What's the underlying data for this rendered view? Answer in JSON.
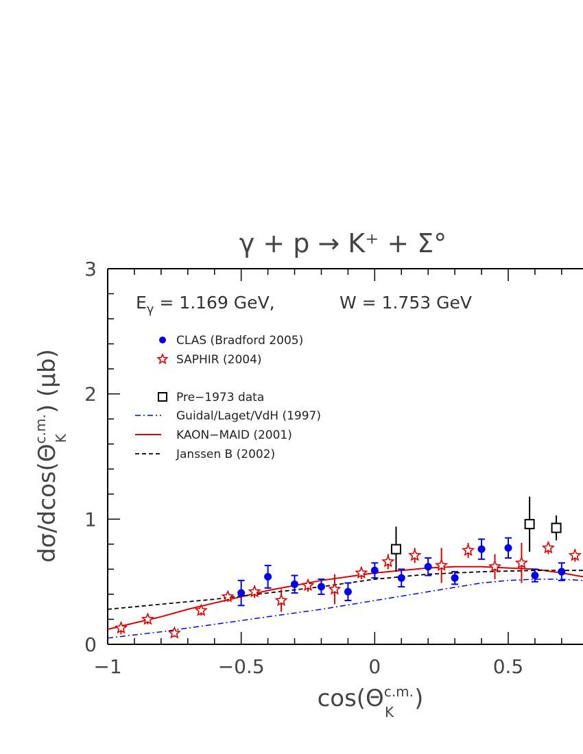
{
  "chart_data": {
    "type": "scatter",
    "title": "γ + p → K⁺ + Σ°",
    "annotation": "E_γ = 1.169 GeV,    W = 1.753 GeV",
    "annotation_parts": {
      "e_symbol": "E",
      "e_sub": "γ",
      "e_value": " = 1.169 GeV,",
      "w_text": "W = 1.753 GeV"
    },
    "xlabel": "cos(Θ_K^c.m.)",
    "xlabel_parts": {
      "base": "cos(Θ",
      "sup": "c.m.",
      "sub": "K",
      "close": ")"
    },
    "ylabel": "dσ/dcos(Θ_K^c.m.) (μb)",
    "ylabel_parts": {
      "base": "dσ/dcos(Θ",
      "sup": "c.m.",
      "sub": "K",
      "close": ") (μb)"
    },
    "xlim": [
      -1,
      0.78
    ],
    "ylim": [
      0,
      3
    ],
    "xticks": [
      -1,
      -0.5,
      0,
      0.5
    ],
    "xtick_labels": [
      "−1",
      "−0.5",
      "0",
      "0.5"
    ],
    "yticks": [
      0,
      1,
      2,
      3
    ],
    "ytick_labels": [
      "0",
      "1",
      "2",
      "3"
    ],
    "colors": {
      "clas": "#0000ee",
      "saphir": "#e00000",
      "pre1973": "#000000",
      "guidal": "#0000ee",
      "kaonmaid": "#e00000",
      "janssen": "#000000",
      "axis": "#000000"
    },
    "legend_position": "upper-left",
    "series": [
      {
        "name": "CLAS (Bradford 2005)",
        "kind": "points",
        "marker": "filled-circle",
        "points": [
          {
            "x": -0.5,
            "y": 0.41,
            "err": 0.1
          },
          {
            "x": -0.4,
            "y": 0.54,
            "err": 0.09
          },
          {
            "x": -0.3,
            "y": 0.48,
            "err": 0.07
          },
          {
            "x": -0.2,
            "y": 0.46,
            "err": 0.06
          },
          {
            "x": -0.1,
            "y": 0.42,
            "err": 0.07
          },
          {
            "x": 0.0,
            "y": 0.59,
            "err": 0.06
          },
          {
            "x": 0.1,
            "y": 0.53,
            "err": 0.07
          },
          {
            "x": 0.2,
            "y": 0.62,
            "err": 0.07
          },
          {
            "x": 0.3,
            "y": 0.53,
            "err": 0.05
          },
          {
            "x": 0.4,
            "y": 0.76,
            "err": 0.08
          },
          {
            "x": 0.5,
            "y": 0.77,
            "err": 0.08
          },
          {
            "x": 0.6,
            "y": 0.55,
            "err": 0.05
          },
          {
            "x": 0.7,
            "y": 0.58,
            "err": 0.07
          }
        ]
      },
      {
        "name": "SAPHIR (2004)",
        "kind": "points",
        "marker": "open-star",
        "points": [
          {
            "x": -0.95,
            "y": 0.13,
            "err": 0.05
          },
          {
            "x": -0.85,
            "y": 0.2,
            "err": 0.04
          },
          {
            "x": -0.75,
            "y": 0.09,
            "err": 0.03
          },
          {
            "x": -0.65,
            "y": 0.27,
            "err": 0.04
          },
          {
            "x": -0.55,
            "y": 0.38,
            "err": 0.04
          },
          {
            "x": -0.45,
            "y": 0.42,
            "err": 0.05
          },
          {
            "x": -0.35,
            "y": 0.35,
            "err": 0.09
          },
          {
            "x": -0.25,
            "y": 0.47,
            "err": 0.05
          },
          {
            "x": -0.15,
            "y": 0.44,
            "err": 0.12
          },
          {
            "x": -0.05,
            "y": 0.57,
            "err": 0.05
          },
          {
            "x": 0.05,
            "y": 0.66,
            "err": 0.06
          },
          {
            "x": 0.15,
            "y": 0.71,
            "err": 0.06
          },
          {
            "x": 0.25,
            "y": 0.63,
            "err": 0.14
          },
          {
            "x": 0.35,
            "y": 0.75,
            "err": 0.06
          },
          {
            "x": 0.45,
            "y": 0.62,
            "err": 0.1
          },
          {
            "x": 0.55,
            "y": 0.65,
            "err": 0.16
          },
          {
            "x": 0.65,
            "y": 0.77,
            "err": 0.05
          },
          {
            "x": 0.75,
            "y": 0.71,
            "err": 0.05
          }
        ]
      },
      {
        "name": "Pre−1973 data",
        "kind": "points",
        "marker": "open-square",
        "points": [
          {
            "x": 0.08,
            "y": 0.76,
            "err": 0.18
          },
          {
            "x": 0.58,
            "y": 0.96,
            "err": 0.22
          },
          {
            "x": 0.68,
            "y": 0.93,
            "err": 0.1
          }
        ]
      },
      {
        "name": "Guidal/Laget/VdH (1997)",
        "kind": "line",
        "style": "dash-dot",
        "x": [
          -1,
          -0.8,
          -0.6,
          -0.4,
          -0.2,
          0,
          0.2,
          0.4,
          0.5,
          0.6,
          0.7,
          0.78
        ],
        "y": [
          0.05,
          0.1,
          0.16,
          0.22,
          0.28,
          0.35,
          0.42,
          0.49,
          0.51,
          0.52,
          0.52,
          0.51
        ]
      },
      {
        "name": "KAON−MAID (2001)",
        "kind": "line",
        "style": "solid",
        "x": [
          -1,
          -0.9,
          -0.8,
          -0.7,
          -0.6,
          -0.5,
          -0.4,
          -0.3,
          -0.2,
          -0.1,
          0,
          0.1,
          0.2,
          0.3,
          0.4,
          0.5,
          0.6,
          0.7,
          0.78
        ],
        "y": [
          0.12,
          0.17,
          0.22,
          0.28,
          0.33,
          0.38,
          0.43,
          0.47,
          0.51,
          0.54,
          0.57,
          0.59,
          0.61,
          0.62,
          0.62,
          0.61,
          0.6,
          0.57,
          0.54
        ]
      },
      {
        "name": "Janssen B (2002)",
        "kind": "line",
        "style": "dashed",
        "x": [
          -1,
          -0.8,
          -0.6,
          -0.4,
          -0.2,
          0,
          0.2,
          0.4,
          0.6,
          0.78
        ],
        "y": [
          0.28,
          0.32,
          0.36,
          0.41,
          0.46,
          0.52,
          0.56,
          0.58,
          0.59,
          0.59
        ]
      }
    ]
  }
}
